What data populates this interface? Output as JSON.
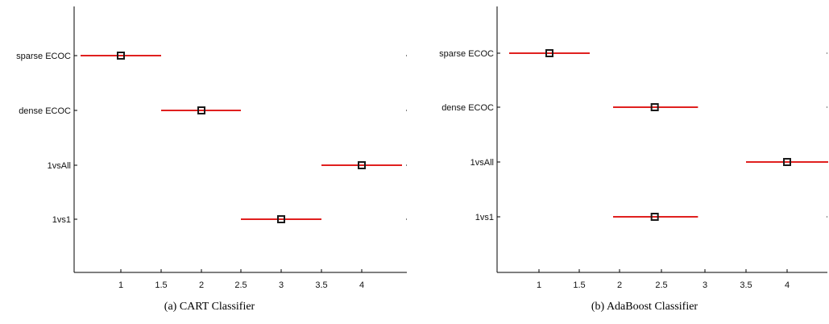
{
  "chart_data": [
    {
      "type": "scatter",
      "caption": "(a) CART Classifier",
      "categories": [
        "sparse ECOC",
        "dense ECOC",
        "1vsAll",
        "1vs1"
      ],
      "xticks": [
        "1",
        "1.5",
        "2",
        "2.5",
        "3",
        "3.5",
        "4"
      ],
      "xlim": [
        0.3,
        4.5
      ],
      "series": [
        {
          "points": [
            {
              "category": "sparse ECOC",
              "mean": 1.0,
              "lower": 0.5,
              "upper": 1.5
            },
            {
              "category": "dense ECOC",
              "mean": 2.0,
              "lower": 1.5,
              "upper": 2.5
            },
            {
              "category": "1vsAll",
              "mean": 4.0,
              "lower": 3.5,
              "upper": 4.5
            },
            {
              "category": "1vs1",
              "mean": 3.0,
              "lower": 2.5,
              "upper": 3.5
            }
          ]
        }
      ],
      "grid": false,
      "interval_color": "#e0201f",
      "marker_color": "#1a1a1a"
    },
    {
      "type": "scatter",
      "caption": "(b) AdaBoost Classifier",
      "categories": [
        "sparse ECOC",
        "dense ECOC",
        "1vsAll",
        "1vs1"
      ],
      "xticks": [
        "1",
        "1.5",
        "2",
        "2.5",
        "3",
        "3.5",
        "4"
      ],
      "xlim": [
        0.3,
        4.5
      ],
      "series": [
        {
          "points": [
            {
              "category": "sparse ECOC",
              "mean": 1.13,
              "lower": 0.63,
              "upper": 1.63
            },
            {
              "category": "dense ECOC",
              "mean": 2.42,
              "lower": 1.92,
              "upper": 2.92
            },
            {
              "category": "1vsAll",
              "mean": 4.0,
              "lower": 3.5,
              "upper": 4.5
            },
            {
              "category": "1vs1",
              "mean": 2.42,
              "lower": 1.92,
              "upper": 2.92
            }
          ]
        }
      ],
      "grid": false,
      "interval_color": "#e0201f",
      "marker_color": "#1a1a1a"
    }
  ]
}
